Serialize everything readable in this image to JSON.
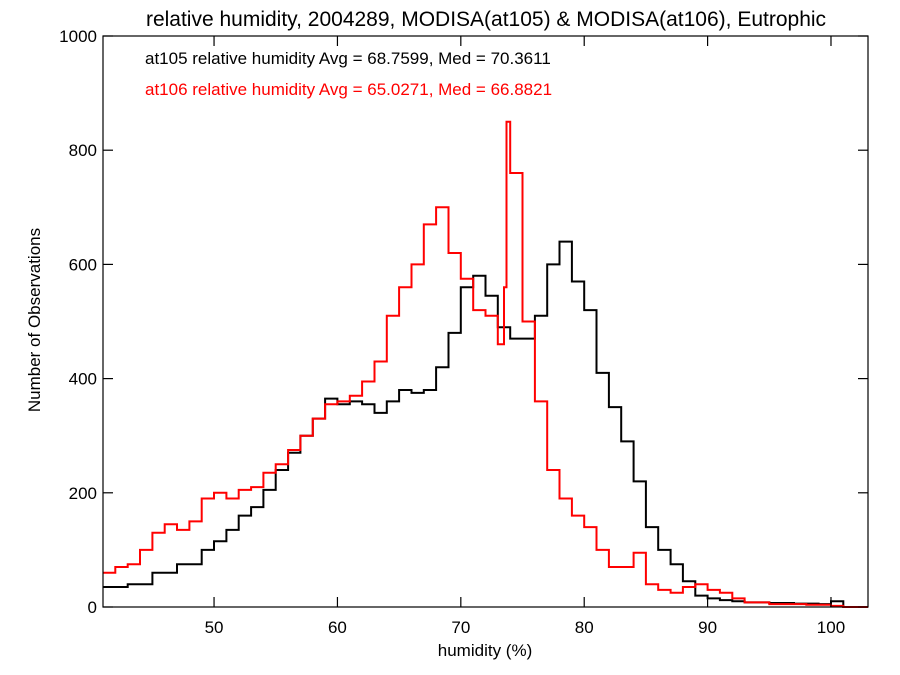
{
  "chart_data": {
    "type": "line",
    "style": "step",
    "title": "relative humidity, 2004289, MODISA(at105) & MODISA(at106), Eutrophic",
    "xlabel": "humidity (%)",
    "ylabel": "Number of Observations",
    "xlim": [
      41,
      103
    ],
    "ylim": [
      0,
      1000
    ],
    "xticks": [
      50,
      60,
      70,
      80,
      90,
      100
    ],
    "yticks": [
      0,
      200,
      400,
      600,
      800,
      1000
    ],
    "legend": {
      "placement": "top-left"
    },
    "annotations": [
      {
        "text": "at105 relative humidity Avg = 68.7599, Med = 70.3611",
        "color": "#000000"
      },
      {
        "text": "at106 relative humidity Avg = 65.0271, Med = 66.8821",
        "color": "#ff0000"
      }
    ],
    "series": [
      {
        "color": "#000000",
        "points": [
          [
            41,
            35
          ],
          [
            43,
            40
          ],
          [
            45,
            60
          ],
          [
            47,
            75
          ],
          [
            49,
            100
          ],
          [
            50,
            115
          ],
          [
            51,
            135
          ],
          [
            52,
            160
          ],
          [
            53,
            175
          ],
          [
            54,
            205
          ],
          [
            55,
            240
          ],
          [
            56,
            270
          ],
          [
            57,
            300
          ],
          [
            58,
            330
          ],
          [
            59,
            365
          ],
          [
            60,
            355
          ],
          [
            61,
            360
          ],
          [
            62,
            355
          ],
          [
            63,
            340
          ],
          [
            64,
            360
          ],
          [
            65,
            380
          ],
          [
            66,
            375
          ],
          [
            67,
            380
          ],
          [
            68,
            420
          ],
          [
            69,
            480
          ],
          [
            70,
            560
          ],
          [
            71,
            580
          ],
          [
            72,
            545
          ],
          [
            73,
            490
          ],
          [
            74,
            470
          ],
          [
            75,
            470
          ],
          [
            76,
            510
          ],
          [
            77,
            600
          ],
          [
            78,
            640
          ],
          [
            79,
            570
          ],
          [
            80,
            520
          ],
          [
            81,
            410
          ],
          [
            82,
            350
          ],
          [
            83,
            290
          ],
          [
            84,
            220
          ],
          [
            85,
            140
          ],
          [
            86,
            100
          ],
          [
            87,
            75
          ],
          [
            88,
            45
          ],
          [
            89,
            20
          ],
          [
            90,
            15
          ],
          [
            91,
            12
          ],
          [
            92,
            10
          ],
          [
            93,
            8
          ],
          [
            95,
            7
          ],
          [
            97,
            6
          ],
          [
            99,
            5
          ],
          [
            100,
            10
          ],
          [
            101,
            0
          ],
          [
            103,
            0
          ]
        ]
      },
      {
        "color": "#ff0000",
        "points": [
          [
            41,
            60
          ],
          [
            42,
            70
          ],
          [
            43,
            75
          ],
          [
            44,
            100
          ],
          [
            45,
            130
          ],
          [
            46,
            145
          ],
          [
            47,
            135
          ],
          [
            48,
            150
          ],
          [
            49,
            190
          ],
          [
            50,
            200
          ],
          [
            51,
            190
          ],
          [
            52,
            205
          ],
          [
            53,
            210
          ],
          [
            54,
            235
          ],
          [
            55,
            250
          ],
          [
            56,
            275
          ],
          [
            57,
            300
          ],
          [
            58,
            330
          ],
          [
            59,
            355
          ],
          [
            60,
            360
          ],
          [
            61,
            370
          ],
          [
            62,
            395
          ],
          [
            63,
            430
          ],
          [
            64,
            510
          ],
          [
            65,
            560
          ],
          [
            66,
            600
          ],
          [
            67,
            670
          ],
          [
            68,
            700
          ],
          [
            69,
            620
          ],
          [
            70,
            575
          ],
          [
            71,
            520
          ],
          [
            72,
            510
          ],
          [
            73,
            460
          ],
          [
            73.5,
            560
          ],
          [
            73.7,
            850
          ],
          [
            74,
            760
          ],
          [
            75,
            500
          ],
          [
            76,
            360
          ],
          [
            77,
            240
          ],
          [
            78,
            190
          ],
          [
            79,
            160
          ],
          [
            80,
            140
          ],
          [
            81,
            100
          ],
          [
            82,
            70
          ],
          [
            83,
            70
          ],
          [
            84,
            95
          ],
          [
            85,
            40
          ],
          [
            86,
            30
          ],
          [
            87,
            25
          ],
          [
            88,
            35
          ],
          [
            89,
            40
          ],
          [
            90,
            30
          ],
          [
            91,
            25
          ],
          [
            92,
            15
          ],
          [
            93,
            8
          ],
          [
            95,
            5
          ],
          [
            98,
            4
          ],
          [
            100,
            2
          ],
          [
            101,
            0
          ],
          [
            103,
            0
          ]
        ]
      }
    ]
  }
}
